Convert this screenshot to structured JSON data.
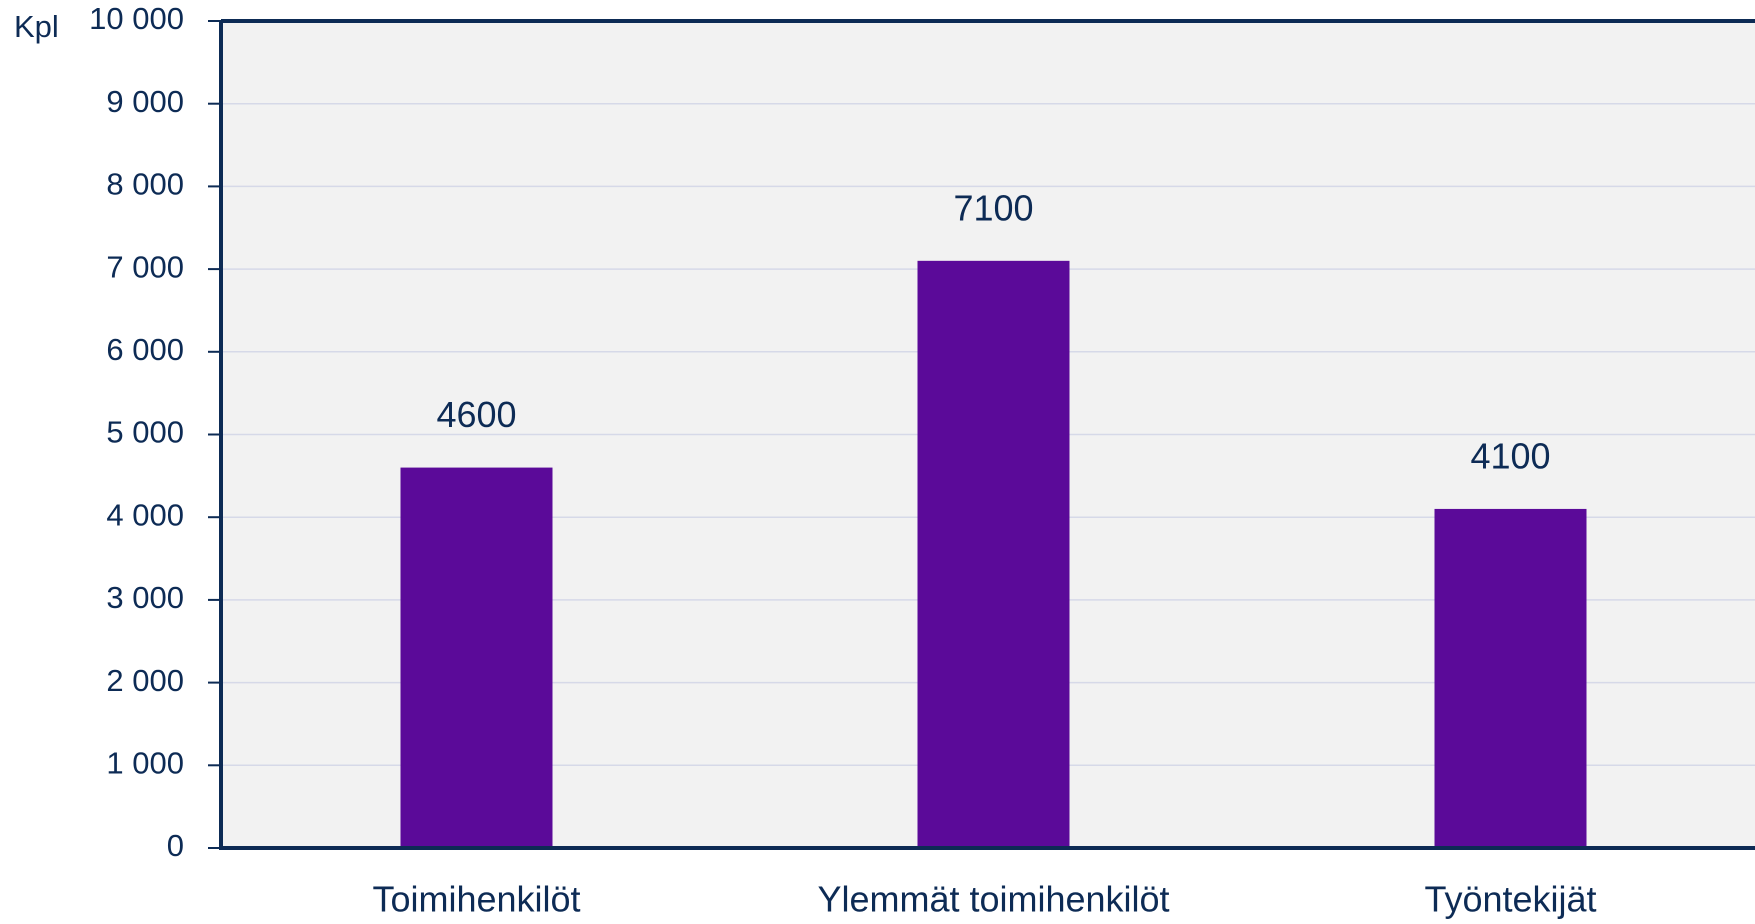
{
  "chart_data": {
    "type": "bar",
    "y_label": "Kpl",
    "categories": [
      "Toimihenkilöt",
      "Ylemmät toimihenkilöt",
      "Työntekijät"
    ],
    "values": [
      4600,
      7100,
      4100
    ],
    "color": "#5b0a99",
    "ylim": [
      0,
      10000
    ],
    "yticks": [
      0,
      {
        "value": 1000,
        "label": "1 000"
      },
      {
        "value": 2000,
        "label": "2 000"
      },
      {
        "value": 3000,
        "label": "3 000"
      },
      {
        "value": 4000,
        "label": "4 000"
      },
      {
        "value": 5000,
        "label": "5 000"
      },
      {
        "value": 6000,
        "label": "6 000"
      },
      {
        "value": 7000,
        "label": "7 000"
      },
      {
        "value": 8000,
        "label": "8 000"
      },
      {
        "value": 9000,
        "label": "9 000"
      },
      {
        "value": 10000,
        "label": "10 000"
      }
    ],
    "grid": true
  }
}
